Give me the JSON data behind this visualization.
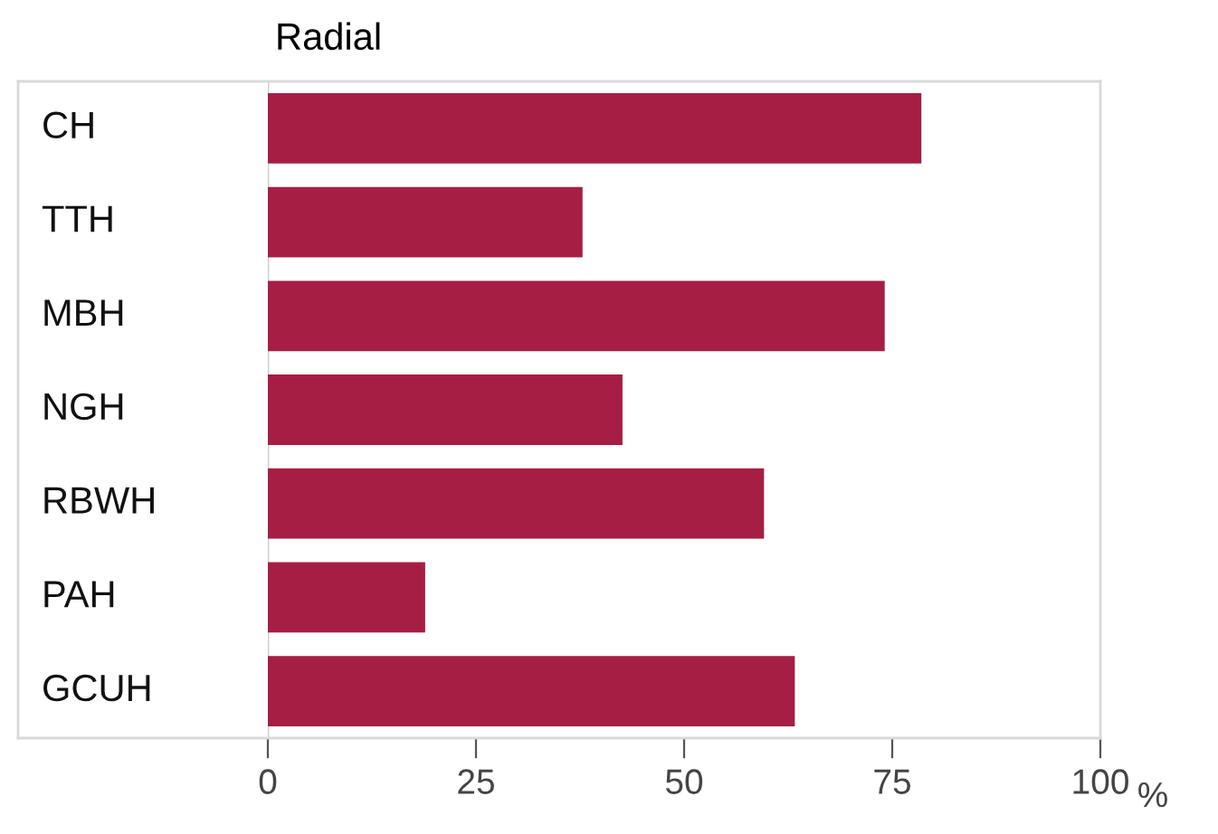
{
  "chart_data": {
    "type": "bar",
    "orientation": "horizontal",
    "title": "Radial",
    "xlabel": "%",
    "categories": [
      "CH",
      "TTH",
      "MBH",
      "NGH",
      "RBWH",
      "PAH",
      "GCUH"
    ],
    "values": [
      78.5,
      37.8,
      74.1,
      42.6,
      59.6,
      18.9,
      63.3
    ],
    "color": "#a61e44",
    "xlim": [
      0,
      100
    ],
    "xticks": [
      0,
      25,
      50,
      75,
      100
    ]
  }
}
